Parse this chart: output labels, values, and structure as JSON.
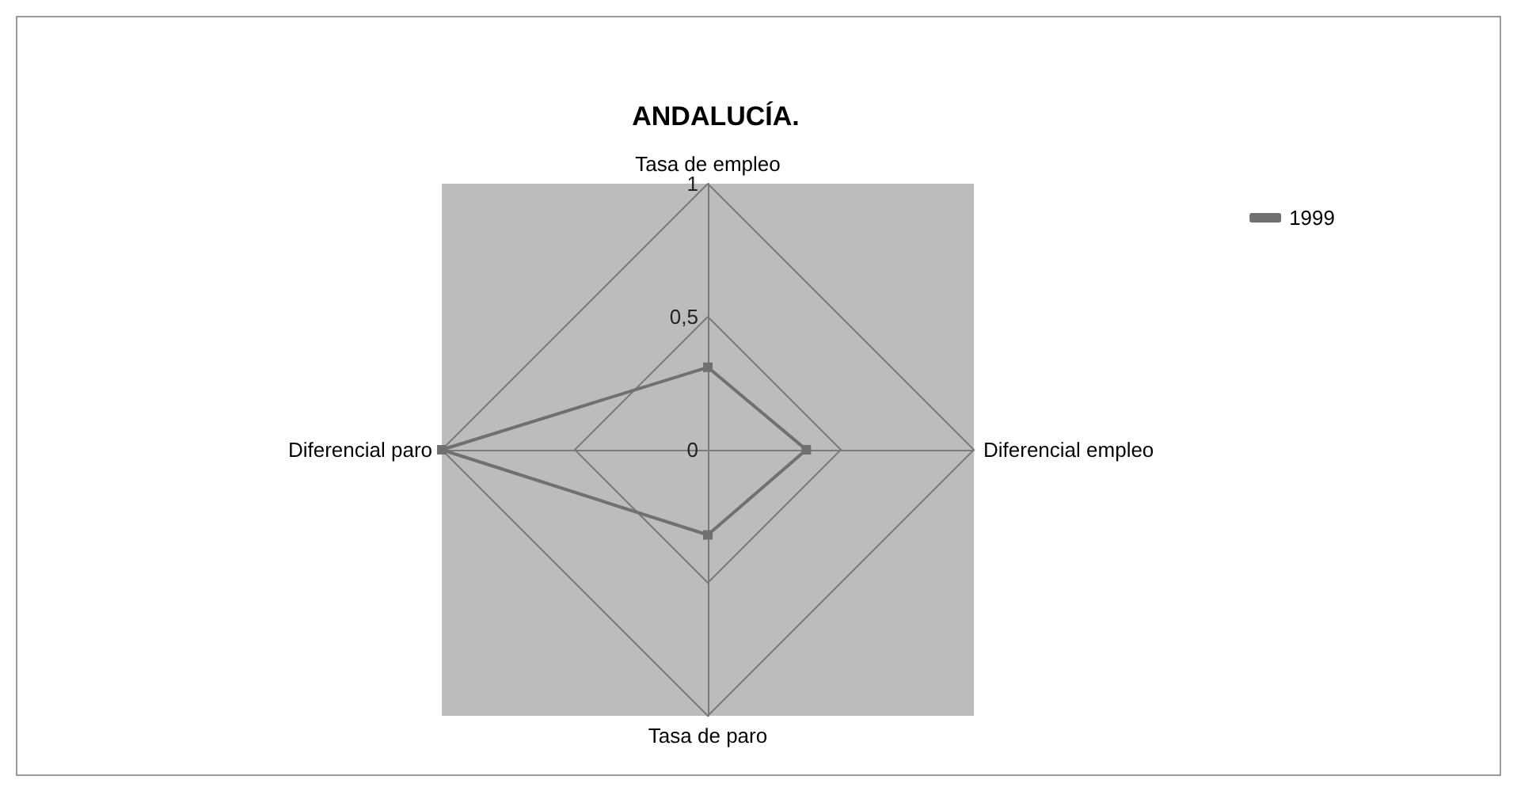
{
  "chart_data": {
    "type": "radar",
    "title": "ANDALUCÍA.",
    "categories": [
      "Tasa de empleo",
      "Diferencial empleo",
      "Tasa de paro",
      "Diferencial paro"
    ],
    "series": [
      {
        "name": "1999",
        "color": "#707070",
        "values": [
          0.31,
          0.37,
          0.32,
          1
        ]
      }
    ],
    "ylim": [
      0,
      1
    ],
    "yticks": [
      0,
      {
        "value": 0.5,
        "label": "0,5"
      },
      1
    ],
    "legend": "top right",
    "marker": "square",
    "grid": true
  }
}
